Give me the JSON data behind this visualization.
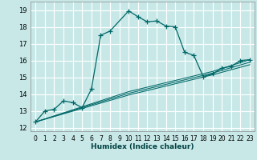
{
  "title": "",
  "xlabel": "Humidex (Indice chaleur)",
  "bg_color": "#c8e8e8",
  "grid_color": "#ffffff",
  "line_color": "#006868",
  "xlim": [
    -0.5,
    23.5
  ],
  "ylim": [
    11.8,
    19.5
  ],
  "yticks": [
    12,
    13,
    14,
    15,
    16,
    17,
    18,
    19
  ],
  "xticks": [
    0,
    1,
    2,
    3,
    4,
    5,
    6,
    7,
    8,
    9,
    10,
    11,
    12,
    13,
    14,
    15,
    16,
    17,
    18,
    19,
    20,
    21,
    22,
    23
  ],
  "series_main": {
    "x": [
      0,
      1,
      2,
      3,
      4,
      5,
      6,
      7,
      8,
      10,
      11,
      12,
      13,
      14,
      15,
      16,
      17,
      18,
      19,
      20,
      21,
      22,
      23
    ],
    "y": [
      12.35,
      13.0,
      13.1,
      13.6,
      13.5,
      13.2,
      14.3,
      17.5,
      17.75,
      18.95,
      18.6,
      18.3,
      18.35,
      18.05,
      18.0,
      16.5,
      16.3,
      15.05,
      15.2,
      15.55,
      15.65,
      16.0,
      16.05
    ]
  },
  "series_trend": [
    {
      "x": [
        0,
        5,
        10,
        19,
        23
      ],
      "y": [
        12.35,
        13.15,
        13.95,
        15.15,
        15.75
      ]
    },
    {
      "x": [
        0,
        5,
        10,
        19,
        23
      ],
      "y": [
        12.35,
        13.2,
        14.05,
        15.25,
        15.9
      ]
    },
    {
      "x": [
        0,
        5,
        10,
        19,
        23
      ],
      "y": [
        12.35,
        13.25,
        14.15,
        15.35,
        16.05
      ]
    }
  ]
}
